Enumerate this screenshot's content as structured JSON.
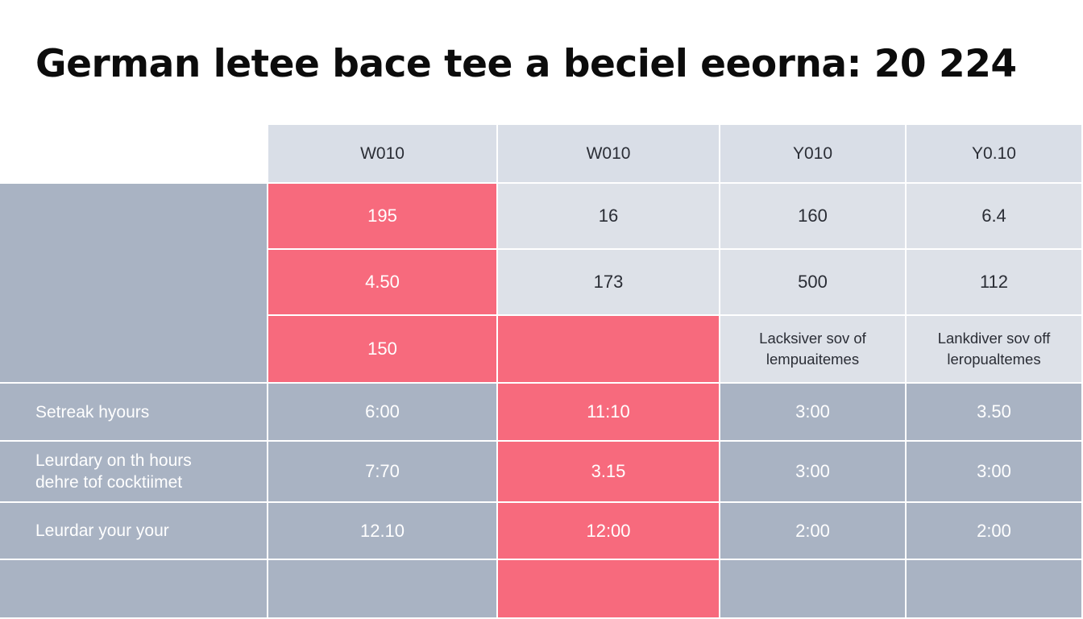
{
  "title": "German letee bace tee a beciel eeorna: 20 224",
  "colors": {
    "header_bg": "#d9dee7",
    "light_bg": "#dde1e8",
    "dark_bg": "#a9b3c3",
    "highlight_bg": "#f76a7d",
    "grid_line": "#ffffff"
  },
  "chart_data": {
    "type": "table",
    "title": "German letee bace tee a beciel eeorna: 20 224",
    "columns": [
      "",
      "W010",
      "W010",
      "Y010",
      "Y0.10"
    ],
    "rows": [
      {
        "label": "",
        "values": [
          "195",
          "16",
          "160",
          "6.4"
        ]
      },
      {
        "label": "",
        "values": [
          "4.50",
          "173",
          "500",
          "112"
        ]
      },
      {
        "label": "",
        "values": [
          "150",
          "",
          "Lacksiver sov of\nlempuaitemes",
          "Lankdiver sov off\nleropualtemes"
        ]
      },
      {
        "label": "Setreak hyours",
        "values": [
          "6:00",
          "11:10",
          "3:00",
          "3.50"
        ]
      },
      {
        "label": "Leurdary on th hours\ndehre tof cocktiimet",
        "values": [
          "7:70",
          "3.15",
          "3:00",
          "3:00"
        ]
      },
      {
        "label": "Leurdar your your",
        "values": [
          "12.10",
          "12:00",
          "2:00",
          "2:00"
        ]
      },
      {
        "label": "",
        "values": [
          "",
          "",
          "",
          ""
        ]
      }
    ],
    "highlighted_cells": [
      [
        0,
        0
      ],
      [
        1,
        0
      ],
      [
        2,
        0
      ],
      [
        2,
        1
      ],
      [
        3,
        1
      ],
      [
        4,
        1
      ],
      [
        5,
        1
      ],
      [
        6,
        1
      ]
    ],
    "grid": true
  }
}
